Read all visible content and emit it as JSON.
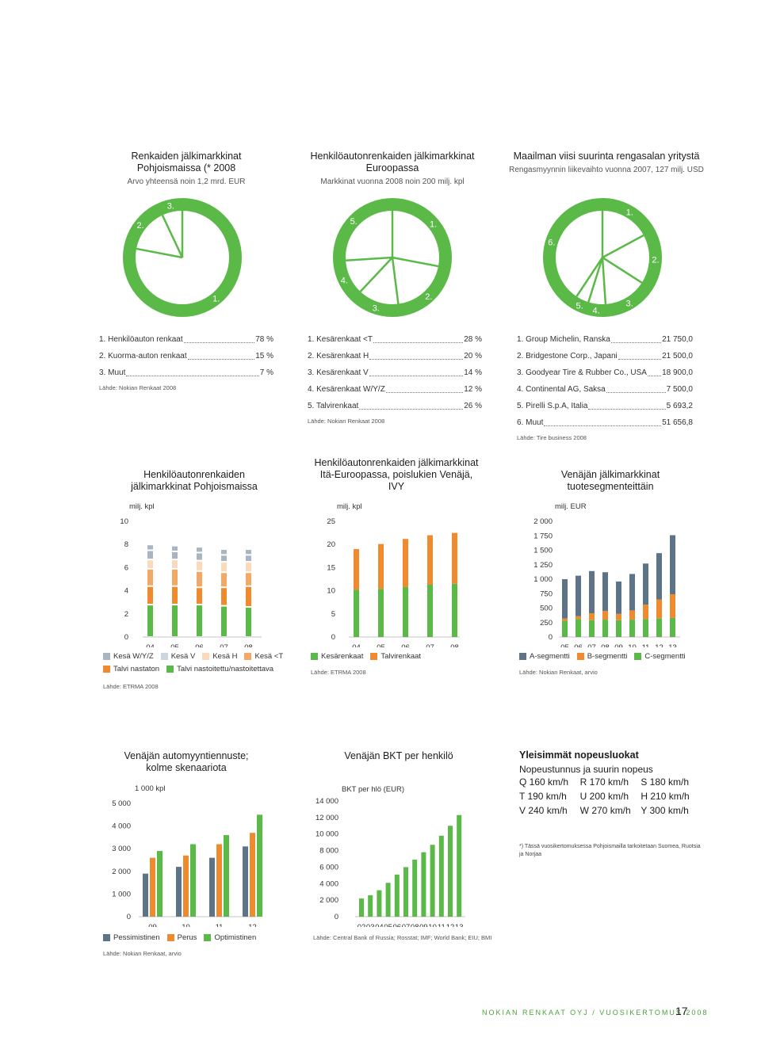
{
  "colors": {
    "green": "#5ab947",
    "orange": "#ef8a2e",
    "gray": "#5d7388",
    "lightgray": "#a9b6c2",
    "peach": "#f6c39a",
    "lightpeach": "#fbd9bd",
    "lightorange": "#f3a866"
  },
  "pies": [
    {
      "title": "Renkaiden jälkimarkkinat Pohjoismaissa (* 2008",
      "subtitle": "Arvo yhteensä noin 1,2 mrd. EUR",
      "markers": [
        "1.",
        "2.",
        "3."
      ],
      "values": [
        78,
        15,
        7
      ],
      "items": [
        {
          "label": "1. Henkilöauton renkaat",
          "value": "78 %"
        },
        {
          "label": "2. Kuorma-auton renkaat",
          "value": "15 %"
        },
        {
          "label": "3. Muut",
          "value": "7 %"
        }
      ],
      "source": "Lähde: Nokian Renkaat 2008"
    },
    {
      "title": "Henkilöautonrenkaiden jälkimarkkinat Euroopassa",
      "subtitle": "Markkinat vuonna 2008 noin 200 milj. kpl",
      "markers": [
        "1.",
        "2.",
        "3.",
        "4.",
        "5."
      ],
      "values": [
        28,
        20,
        14,
        12,
        26
      ],
      "items": [
        {
          "label": "1. Kesärenkaat <T",
          "value": "28 %"
        },
        {
          "label": "2. Kesärenkaat H",
          "value": "20 %"
        },
        {
          "label": "3. Kesärenkaat V",
          "value": "14 %"
        },
        {
          "label": "4. Kesärenkaat W/Y/Z",
          "value": "12 %"
        },
        {
          "label": "5. Talvirenkaat",
          "value": "26 %"
        }
      ],
      "source": "Lähde: Nokian Renkaat 2008"
    },
    {
      "title": "Maailman viisi suurinta rengasalan yritystä",
      "subtitle": "Rengasmyynnin liikevaihto vuonna 2007, 127 milj. USD",
      "markers": [
        "1.",
        "2.",
        "3.",
        "4.",
        "5.",
        "6."
      ],
      "values": [
        21750.0,
        21500.0,
        18900.0,
        7500.0,
        5693.2,
        51656.8
      ],
      "items": [
        {
          "label": "1. Group Michelin, Ranska",
          "value": "21 750,0"
        },
        {
          "label": "2. Bridgestone Corp., Japani",
          "value": "21 500,0"
        },
        {
          "label": "3. Goodyear Tire & Rubber Co., USA",
          "value": "18 900,0"
        },
        {
          "label": "4. Continental AG, Saksa",
          "value": "7 500,0"
        },
        {
          "label": "5. Pirelli S.p.A, Italia",
          "value": "5 693,2"
        },
        {
          "label": "6. Muut",
          "value": "51 656,8"
        }
      ],
      "source": "Lähde: Tire business 2008"
    }
  ],
  "chart_data": [
    {
      "type": "bar",
      "title": "Henkilöautonrenkaiden jälkimarkkinat Pohjoismaissa",
      "unit": "milj. kpl",
      "categories": [
        "04",
        "05",
        "06",
        "07",
        "08"
      ],
      "yticks": [
        "0",
        "2",
        "4",
        "6",
        "8",
        "10"
      ],
      "ylim": [
        0,
        10
      ],
      "series": [
        {
          "name": "Talvi nastoitettu/nastoitettava",
          "color": "#5ab947",
          "values": [
            2.8,
            2.8,
            2.8,
            2.7,
            2.6
          ]
        },
        {
          "name": "Talvi nastaton",
          "color": "#ef8a2e",
          "values": [
            1.6,
            1.6,
            1.5,
            1.6,
            1.8
          ]
        },
        {
          "name": "Kesä <T",
          "color": "#f3a866",
          "values": [
            1.5,
            1.5,
            1.4,
            1.3,
            1.2
          ]
        },
        {
          "name": "Kesä H",
          "color": "#fbd9bd",
          "values": [
            0.8,
            0.8,
            0.9,
            0.9,
            0.9
          ]
        },
        {
          "name": "Kesä V",
          "color": "#a9b6c2",
          "values": [
            0.8,
            0.7,
            0.7,
            0.6,
            0.6
          ]
        },
        {
          "name": "Kesä W/Y/Z",
          "color": "#a9b6c2",
          "values": [
            0.5,
            0.5,
            0.5,
            0.5,
            0.5
          ]
        }
      ],
      "legend": [
        "Kesä W/Y/Z",
        "Kesä V",
        "Kesä H",
        "Kesä <T",
        "Talvi nastaton",
        "Talvi nastoitettu/nastoitettava"
      ],
      "source": "Lähde: ETRMA 2008"
    },
    {
      "type": "bar",
      "title": "Henkilöautonrenkaiden jälkimarkkinat Itä-Euroopassa, poislukien Venäjä, IVY",
      "unit": "milj. kpl",
      "categories": [
        "04",
        "05",
        "06",
        "07",
        "08"
      ],
      "yticks": [
        "0",
        "5",
        "10",
        "15",
        "20",
        "25"
      ],
      "ylim": [
        0,
        25
      ],
      "series": [
        {
          "name": "Kesärenkaat",
          "color": "#5ab947",
          "values": [
            10.2,
            10.4,
            10.8,
            11.3,
            11.5
          ]
        },
        {
          "name": "Talvirenkaat",
          "color": "#ef8a2e",
          "values": [
            8.8,
            9.7,
            10.4,
            10.7,
            11.0
          ]
        }
      ],
      "legend": [
        "Kesärenkaat",
        "Talvirenkaat"
      ],
      "source": "Lähde: ETRMA 2008"
    },
    {
      "type": "bar",
      "title": "Venäjän jälkimarkkinat tuotesegmenteittäin",
      "unit": "milj. EUR",
      "categories": [
        "05",
        "06",
        "07",
        "08",
        "09",
        "10",
        "11",
        "12",
        "13"
      ],
      "yticks": [
        "0",
        "250",
        "500",
        "750",
        "1 000",
        "1 250",
        "1 500",
        "1 750",
        "2 000"
      ],
      "ylim": [
        0,
        2000
      ],
      "series": [
        {
          "name": "C-segmentti",
          "color": "#5ab947",
          "values": [
            280,
            310,
            290,
            300,
            290,
            300,
            310,
            320,
            330
          ]
        },
        {
          "name": "B-segmentti",
          "color": "#ef8a2e",
          "values": [
            40,
            50,
            120,
            150,
            110,
            160,
            250,
            330,
            410
          ]
        },
        {
          "name": "A-segmentti",
          "color": "#5d7388",
          "values": [
            680,
            700,
            730,
            670,
            560,
            630,
            710,
            800,
            1020
          ]
        }
      ],
      "legend": [
        "A-segmentti",
        "B-segmentti",
        "C-segmentti"
      ],
      "source": "Lähde: Nokian Renkaat, arvio"
    },
    {
      "type": "bar",
      "title": "Venäjän automyyntiennuste; kolme skenaariota",
      "unit": "1 000 kpl",
      "categories": [
        "09",
        "10",
        "11",
        "12"
      ],
      "yticks": [
        "0",
        "1 000",
        "2 000",
        "3 000",
        "4 000",
        "5 000"
      ],
      "ylim": [
        0,
        5000
      ],
      "series": [
        {
          "name": "Pessimistinen",
          "color": "#5d7388",
          "values": [
            1900,
            2200,
            2600,
            3100
          ]
        },
        {
          "name": "Perus",
          "color": "#ef8a2e",
          "values": [
            2600,
            2700,
            3200,
            3700
          ]
        },
        {
          "name": "Optimistinen",
          "color": "#5ab947",
          "values": [
            2900,
            3200,
            3600,
            4500
          ]
        }
      ],
      "legend": [
        "Pessimistinen",
        "Perus",
        "Optimistinen"
      ],
      "source": "Lähde: Nokian Renkaat, arvio"
    },
    {
      "type": "bar",
      "title": "Venäjän BKT per henkilö",
      "unit": "BKT per hlö (EUR)",
      "categories": [
        "02",
        "03",
        "04",
        "05",
        "06",
        "07",
        "08",
        "09",
        "10",
        "11",
        "12",
        "13"
      ],
      "yticks": [
        "0",
        "2 000",
        "4 000",
        "6 000",
        "8 000",
        "10 000",
        "12 000",
        "14 000"
      ],
      "ylim": [
        0,
        14000
      ],
      "series": [
        {
          "name": "BKT per hlö",
          "color": "#5ab947",
          "values": [
            2200,
            2600,
            3200,
            4100,
            5100,
            6000,
            6900,
            7800,
            8700,
            9800,
            11000,
            12300
          ]
        }
      ],
      "legend": [],
      "source": "Lähde: Central Bank of Russia; Rosstat; IMF; World Bank; EIU; BMI"
    }
  ],
  "speed": {
    "title": "Yleisimmät nopeusluokat",
    "subtitle": "Nopeustunnus ja suurin nopeus",
    "rows": [
      [
        "Q 160 km/h",
        "R 170 km/h",
        "S 180 km/h"
      ],
      [
        "T 190 km/h",
        "U 200 km/h",
        "H 210 km/h"
      ],
      [
        "V 240 km/h",
        "W 270 km/h",
        "Y 300 km/h"
      ]
    ],
    "footnote": "*) Tässä vuosikertomuksessa Pohjoismailla tarkoitetaan Suomea, Ruotsia ja Norjaa"
  },
  "footer": {
    "text": "NOKIAN RENKAAT OYJ / VUOSIKERTOMUS 2008",
    "page": "17"
  }
}
